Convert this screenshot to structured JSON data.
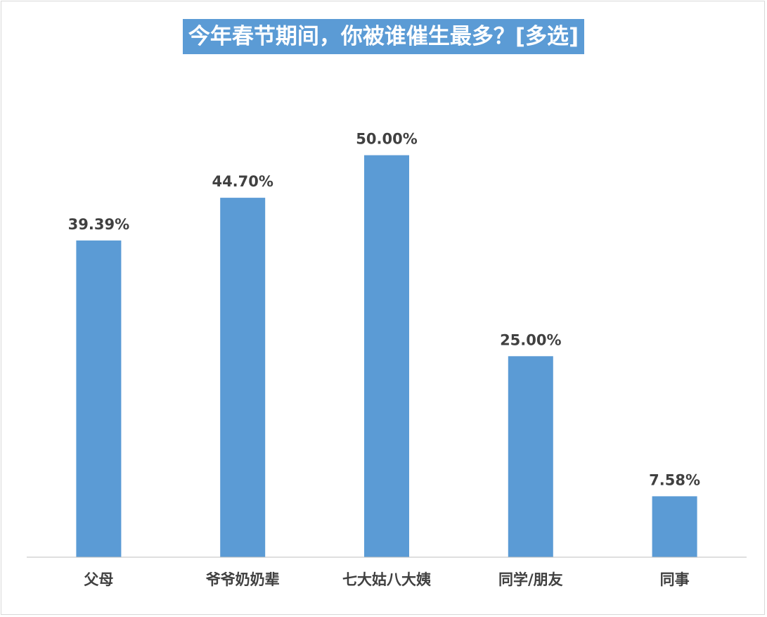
{
  "chart_data": {
    "type": "bar",
    "title": "今年春节期间，你被谁催生最多？[多选]",
    "categories": [
      "父母",
      "爷爷奶奶辈",
      "七大姑八大姨",
      "同学/朋友",
      "同事"
    ],
    "values": [
      39.39,
      44.7,
      50.0,
      25.0,
      7.58
    ],
    "value_labels": [
      "39.39%",
      "44.70%",
      "50.00%",
      "25.00%",
      "7.58%"
    ],
    "unit": "%",
    "ylim": [
      0,
      56
    ],
    "xlabel": "",
    "ylabel": "",
    "grid": false,
    "legend": "none",
    "bar_color": "#5b9bd5",
    "title_bg_color": "#5b9bd5",
    "title_text_color": "#ffffff",
    "label_color": "#404040"
  }
}
